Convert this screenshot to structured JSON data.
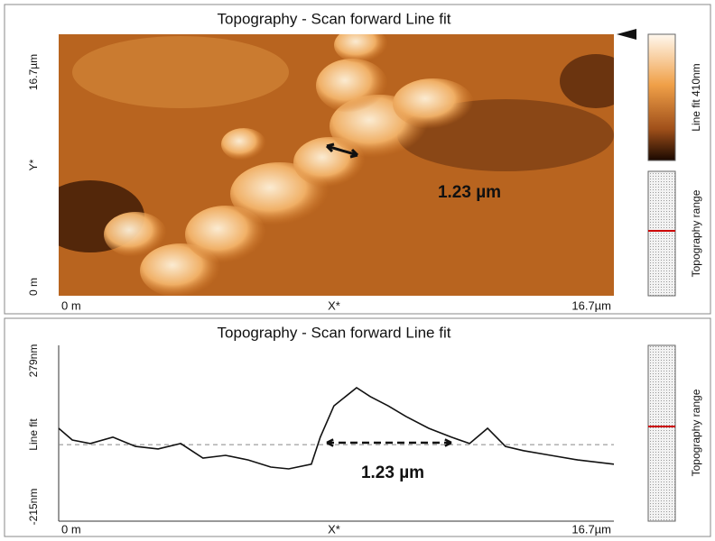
{
  "top_panel": {
    "title": "Topography - Scan forward   Line fit",
    "y_labels": {
      "top": "16.7µm",
      "middle": "Y*",
      "bottom": "0 m"
    },
    "x_labels": {
      "left": "0 m",
      "middle": "X*",
      "right": "16.7µm"
    },
    "colorbar_label": "Line fit 410nm",
    "range_label": "Topography range",
    "annotation": "1.23 µm"
  },
  "bottom_panel": {
    "title": "Topography - Scan forward   Line fit",
    "y_labels": {
      "top": "279nm",
      "middle": "Line fit",
      "bottom": "-215nm"
    },
    "x_labels": {
      "left": "0 m",
      "middle": "X*",
      "right": "16.7µm"
    },
    "range_label": "Topography range",
    "annotation": "1.23 µm",
    "profile": {
      "xlim": [
        0,
        16.7
      ],
      "ylim": [
        -215,
        279
      ],
      "color": "#111111",
      "x": [
        0,
        0.41,
        0.95,
        1.63,
        2.31,
        2.99,
        3.67,
        4.34,
        5.02,
        5.7,
        6.38,
        6.92,
        7.6,
        7.87,
        8.28,
        8.96,
        9.37,
        9.91,
        10.45,
        11.13,
        11.81,
        12.36,
        12.9,
        13.44,
        13.98,
        14.8,
        15.61,
        16.7
      ],
      "values": [
        46,
        13,
        3,
        21,
        -5,
        -12,
        3,
        -38,
        -30,
        -43,
        -63,
        -68,
        -55,
        21,
        109,
        160,
        135,
        109,
        79,
        46,
        21,
        3,
        46,
        -5,
        -17,
        -30,
        -43,
        -55
      ]
    }
  }
}
